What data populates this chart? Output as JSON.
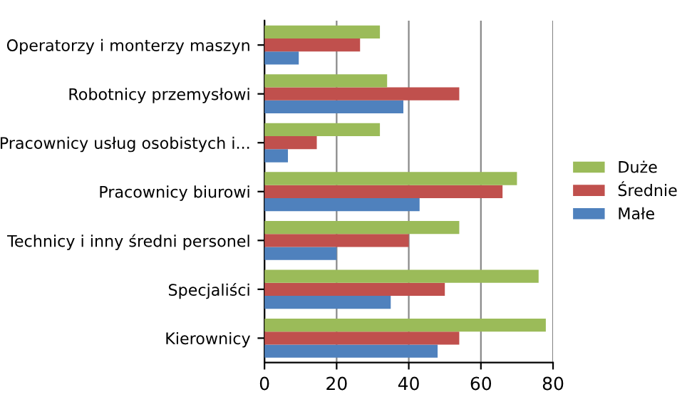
{
  "chart_data": {
    "type": "bar",
    "orientation": "horizontal",
    "categories": [
      "Operatorzy i monterzy maszyn",
      "Robotnicy przemysłowi",
      "Pracownicy usług osobistych i...",
      "Pracownicy biurowi",
      "Technicy i inny średni personel",
      "Specjaliści",
      "Kierownicy"
    ],
    "series": [
      {
        "name": "Małe",
        "color": "#4f81bd",
        "values": [
          9.5,
          38.5,
          6.5,
          43,
          20,
          35,
          48
        ]
      },
      {
        "name": "Średnie",
        "color": "#c0504d",
        "values": [
          26.5,
          54,
          14.5,
          66,
          40,
          50,
          54
        ]
      },
      {
        "name": "Duże",
        "color": "#9bbb59",
        "values": [
          32,
          34,
          32,
          70,
          54,
          76,
          78
        ]
      }
    ],
    "xlim": [
      0,
      80
    ],
    "xticks": [
      0,
      20,
      40,
      60,
      80
    ],
    "grid": "x",
    "legend": "right"
  }
}
